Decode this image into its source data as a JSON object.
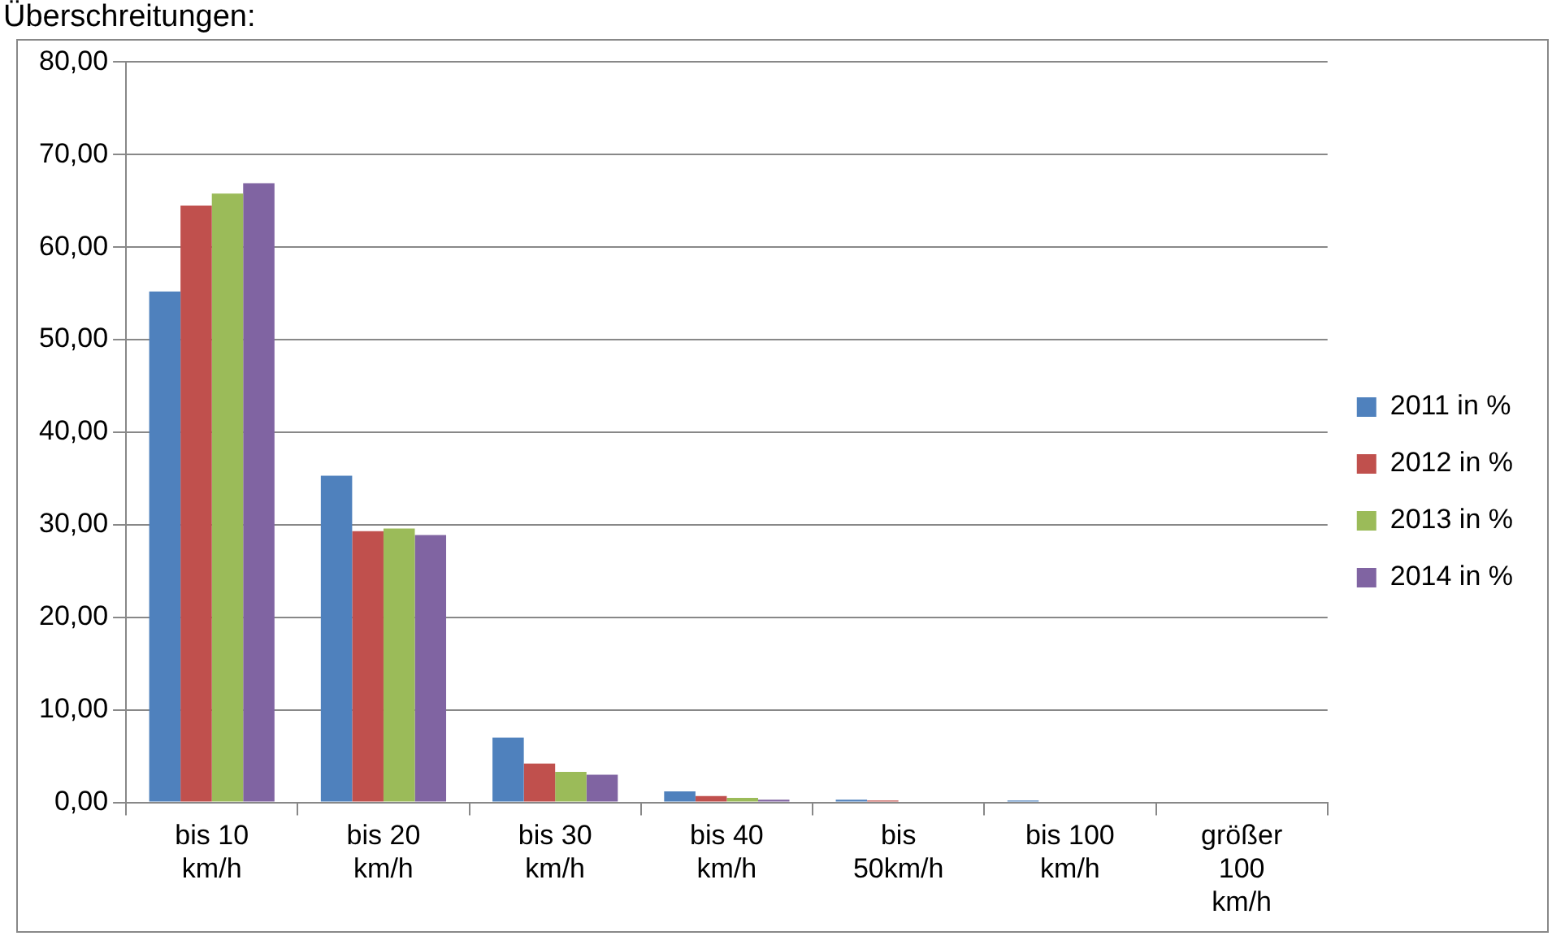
{
  "chart_data": {
    "type": "bar",
    "title": "Überschreitungen:",
    "categories": [
      "bis 10 km/h",
      "bis 20 km/h",
      "bis 30 km/h",
      "bis 40 km/h",
      "bis 50km/h",
      "bis 100 km/h",
      "größer 100 km/h"
    ],
    "series": [
      {
        "name": "2011 in %",
        "color": "#4f81bd",
        "values": [
          55.2,
          35.3,
          7.0,
          1.2,
          0.3,
          0.2,
          0
        ]
      },
      {
        "name": "2012 in %",
        "color": "#c0504d",
        "values": [
          64.5,
          29.3,
          4.2,
          0.7,
          0.2,
          0.1,
          0
        ]
      },
      {
        "name": "2013 in %",
        "color": "#9bbb59",
        "values": [
          65.8,
          29.6,
          3.3,
          0.5,
          0.1,
          0,
          0
        ]
      },
      {
        "name": "2014 in %",
        "color": "#8064a2",
        "values": [
          66.9,
          28.9,
          3.0,
          0.3,
          0,
          0,
          0
        ]
      }
    ],
    "ylim": [
      0,
      80
    ],
    "yticks": [
      {
        "value": 0,
        "label": "0,00"
      },
      {
        "value": 10,
        "label": "10,00"
      },
      {
        "value": 20,
        "label": "20,00"
      },
      {
        "value": 30,
        "label": "30,00"
      },
      {
        "value": 40,
        "label": "40,00"
      },
      {
        "value": 50,
        "label": "50,00"
      },
      {
        "value": 60,
        "label": "60,00"
      },
      {
        "value": 70,
        "label": "70,00"
      },
      {
        "value": 80,
        "label": "80,00"
      }
    ],
    "grid": "y",
    "legend": "right"
  }
}
